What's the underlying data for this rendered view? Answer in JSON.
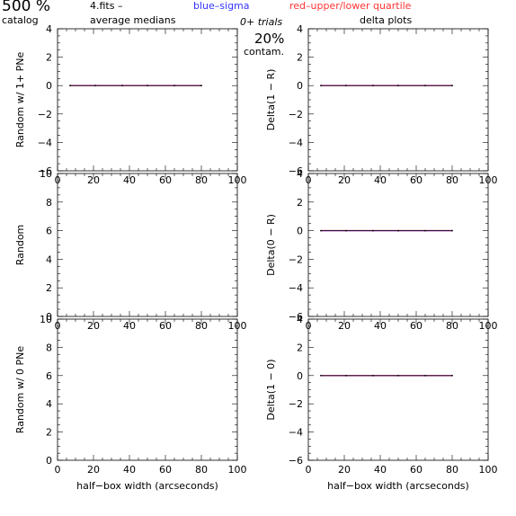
{
  "header": {
    "count": "500 %",
    "catalog": "catalog",
    "fits": "4.fits  –",
    "average_medians": "average medians",
    "blue_legend": "blue–sigma",
    "red_legend": "red–upper/lower quartile",
    "trials": "0+ trials",
    "contam_pct": "20%",
    "contam": "contam.",
    "delta_plots": "delta plots"
  },
  "colors": {
    "axis": "#000000",
    "median": "#000000",
    "sigma": "#0000ff",
    "quartile": "#ff0000",
    "text_blue": "#3333ff",
    "text_red": "#ff3333"
  },
  "chart_data": [
    {
      "id": "p1",
      "type": "line",
      "ylabel": "Random w/ 1+ PNe",
      "xlim": [
        0,
        100
      ],
      "ylim": [
        -6,
        4
      ],
      "xticks": [
        "0",
        "20",
        "40",
        "60",
        "80",
        "100"
      ],
      "yticks": [
        "−6",
        "−4",
        "−2",
        "0",
        "2",
        "4"
      ],
      "xlabel": "",
      "series": [
        {
          "x": [
            7,
            21,
            36,
            50,
            65,
            80
          ],
          "values": [
            0,
            0,
            0,
            0,
            0,
            0
          ]
        }
      ]
    },
    {
      "id": "p2",
      "type": "line",
      "ylabel": "Delta(1 − R)",
      "xlim": [
        0,
        100
      ],
      "ylim": [
        -6,
        4
      ],
      "xticks": [
        "0",
        "20",
        "40",
        "60",
        "80",
        "100"
      ],
      "yticks": [
        "−6",
        "−4",
        "−2",
        "0",
        "2",
        "4"
      ],
      "xlabel": "",
      "series": [
        {
          "x": [
            7,
            21,
            36,
            50,
            65,
            80
          ],
          "values": [
            0,
            0,
            0,
            0,
            0,
            0
          ]
        }
      ]
    },
    {
      "id": "p3",
      "type": "line",
      "ylabel": "Random",
      "xlim": [
        0,
        100
      ],
      "ylim": [
        0,
        10
      ],
      "xticks": [
        "0",
        "20",
        "40",
        "60",
        "80",
        "100"
      ],
      "yticks": [
        "0",
        "2",
        "4",
        "6",
        "8",
        "10"
      ],
      "xlabel": "",
      "series": []
    },
    {
      "id": "p4",
      "type": "line",
      "ylabel": "Delta(0 − R)",
      "xlim": [
        0,
        100
      ],
      "ylim": [
        -6,
        4
      ],
      "xticks": [
        "0",
        "20",
        "40",
        "60",
        "80",
        "100"
      ],
      "yticks": [
        "−6",
        "−4",
        "−2",
        "0",
        "2",
        "4"
      ],
      "xlabel": "",
      "series": [
        {
          "x": [
            7,
            21,
            36,
            50,
            65,
            80
          ],
          "values": [
            0,
            0,
            0,
            0,
            0,
            0
          ]
        }
      ]
    },
    {
      "id": "p5",
      "type": "line",
      "ylabel": "Random w/ 0 PNe",
      "xlim": [
        0,
        100
      ],
      "ylim": [
        0,
        10
      ],
      "xticks": [
        "0",
        "20",
        "40",
        "60",
        "80",
        "100"
      ],
      "yticks": [
        "0",
        "2",
        "4",
        "6",
        "8",
        "10"
      ],
      "xlabel": "half−box width (arcseconds)",
      "series": []
    },
    {
      "id": "p6",
      "type": "line",
      "ylabel": "Delta(1 − 0)",
      "xlim": [
        0,
        100
      ],
      "ylim": [
        -6,
        4
      ],
      "xticks": [
        "0",
        "20",
        "40",
        "60",
        "80",
        "100"
      ],
      "yticks": [
        "−6",
        "−4",
        "−2",
        "0",
        "2",
        "4"
      ],
      "xlabel": "half−box width (arcseconds)",
      "series": [
        {
          "x": [
            7,
            21,
            36,
            50,
            65,
            80
          ],
          "values": [
            0,
            0,
            0,
            0,
            0,
            0
          ]
        }
      ]
    }
  ]
}
